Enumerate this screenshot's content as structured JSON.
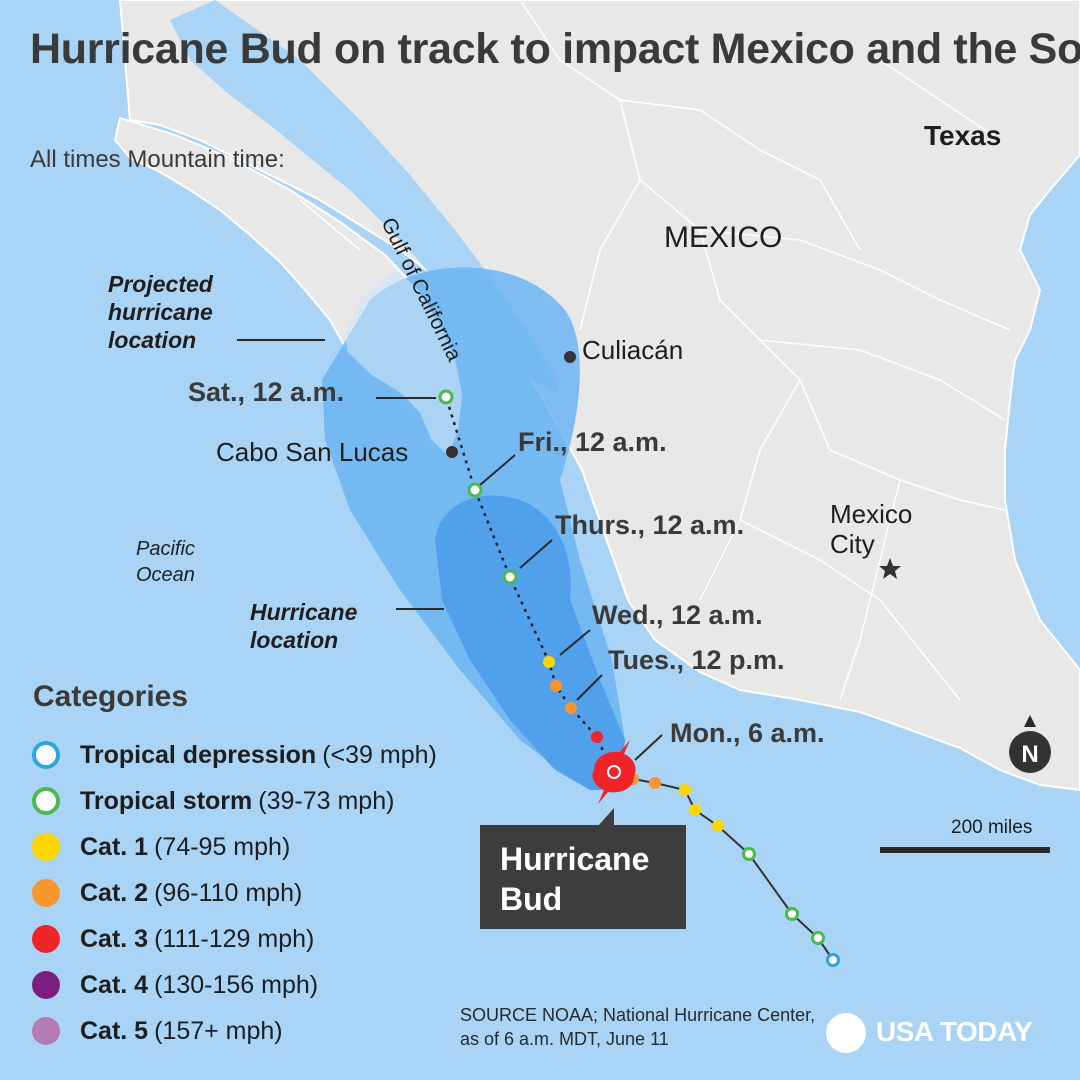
{
  "title": "Hurricane Bud on track to impact Mexico and the Southwest U.S.",
  "subtitle": "All times Mountain time:",
  "places": {
    "texas": "Texas",
    "mexico": "MEXICO",
    "culiacan": "Culiacán",
    "cabo": "Cabo San Lucas",
    "mexico_city_line1": "Mexico",
    "mexico_city_line2": "City",
    "gulf": "Gulf of California",
    "ocean": "Pacific Ocean"
  },
  "zones": {
    "projected": "Projected hurricane location",
    "current": "Hurricane location"
  },
  "track_labels": {
    "sat": "Sat., 12 a.m.",
    "fri": "Fri., 12 a.m.",
    "thurs": "Thurs., 12 a.m.",
    "wed": "Wed., 12 a.m.",
    "tues": "Tues., 12 p.m.",
    "mon": "Mon., 6 a.m."
  },
  "callout": "Hurricane Bud",
  "legend": {
    "title": "Categories",
    "items": [
      {
        "name": "Tropical depression",
        "range": "(<39 mph)",
        "color": "#29a6dd",
        "hollow": true
      },
      {
        "name": "Tropical storm",
        "range": "(39-73 mph)",
        "color": "#4cb84e",
        "hollow": true
      },
      {
        "name": "Cat. 1",
        "range": "(74-95 mph)",
        "color": "#ffd500",
        "hollow": false
      },
      {
        "name": "Cat. 2",
        "range": "(96-110 mph)",
        "color": "#f7962e",
        "hollow": false
      },
      {
        "name": "Cat. 3",
        "range": "(111-129 mph)",
        "color": "#ee2429",
        "hollow": false
      },
      {
        "name": "Cat. 4",
        "range": "(130-156 mph)",
        "color": "#7b1f7e",
        "hollow": false
      },
      {
        "name": "Cat. 5",
        "range": "(157+ mph)",
        "color": "#b67ab4",
        "hollow": false
      }
    ]
  },
  "scale": "200 miles",
  "north": "N",
  "source": "SOURCE  NOAA; National Hurricane Center, as of 6 a.m. MDT, June 11",
  "brand": "USA TODAY",
  "colors": {
    "ocean": "#a9d4f5",
    "land": "#e8e8e8",
    "cone_outer": "#6cb4f2",
    "cone_inner": "#4d9deb",
    "track_past": "#333333"
  }
}
